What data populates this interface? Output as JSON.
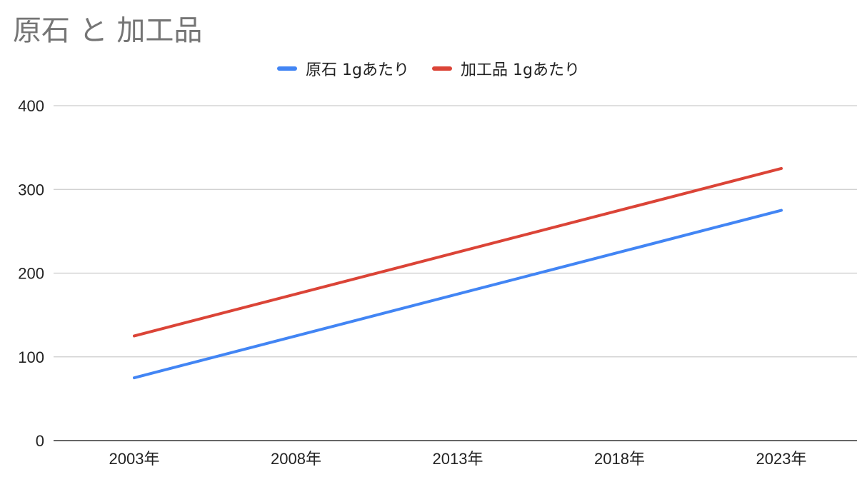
{
  "chart_data": {
    "type": "line",
    "title": "原石 と 加工品",
    "xlabel": "",
    "ylabel": "",
    "categories": [
      "2003年",
      "2008年",
      "2013年",
      "2018年",
      "2023年"
    ],
    "x": [
      2003,
      2023
    ],
    "ylim": [
      0,
      400
    ],
    "yticks": [
      0,
      100,
      200,
      300,
      400
    ],
    "grid": true,
    "legend_position": "top",
    "series": [
      {
        "name": "原石 1gあたり",
        "color": "#4285f4",
        "values": [
          75,
          275
        ]
      },
      {
        "name": "加工品 1gあたり",
        "color": "#db4437",
        "values": [
          125,
          325
        ]
      }
    ]
  }
}
